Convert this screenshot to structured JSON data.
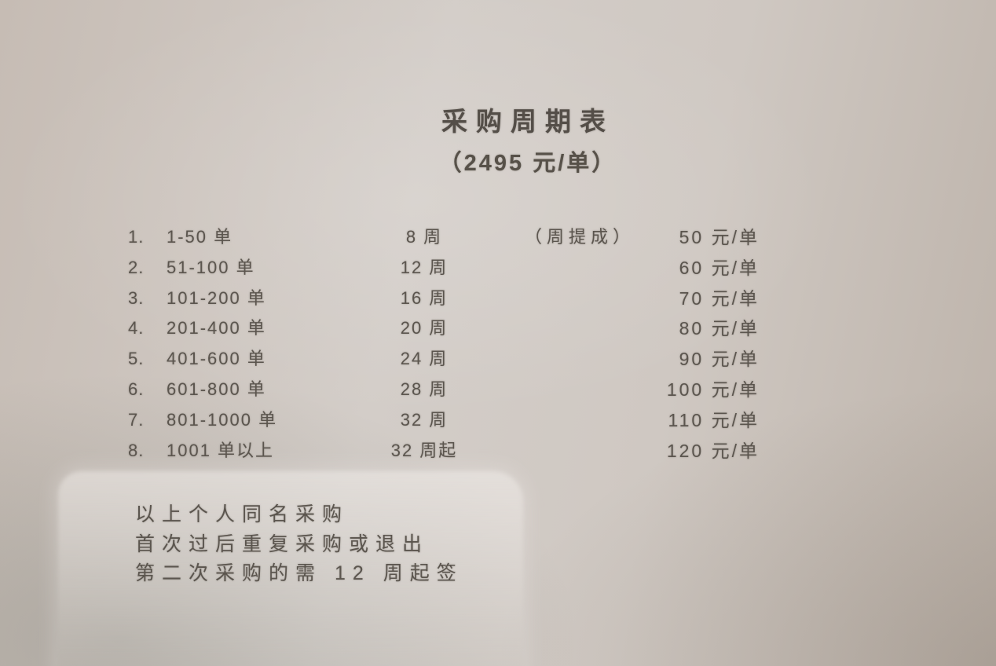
{
  "page": {
    "title": "采购周期表",
    "subtitle": "（2495 元/单）"
  },
  "table": {
    "rows": [
      {
        "num": "1.",
        "range": "1-50 单",
        "weeks": "8 周",
        "commission": "（周提成）",
        "rate": "50 元/单"
      },
      {
        "num": "2.",
        "range": "51-100 单",
        "weeks": "12 周",
        "rate": "60 元/单"
      },
      {
        "num": "3.",
        "range": "101-200 单",
        "weeks": "16 周",
        "rate": "70 元/单"
      },
      {
        "num": "4.",
        "range": "201-400 单",
        "weeks": "20 周",
        "rate": "80 元/单"
      },
      {
        "num": "5.",
        "range": "401-600 单",
        "weeks": "24 周",
        "rate": "90 元/单"
      },
      {
        "num": "6.",
        "range": "601-800 单",
        "weeks": "28 周",
        "rate": "100 元/单"
      },
      {
        "num": "7.",
        "range": "801-1000 单",
        "weeks": "32 周",
        "rate": "110 元/单"
      },
      {
        "num": "8.",
        "range": "1001 单以上",
        "weeks": "32 周起",
        "rate": "120 元/单"
      }
    ]
  },
  "notes": [
    "以上个人同名采购",
    "首次过后重复采购或退出",
    "第二次采购的需 12 周起签"
  ],
  "colors": {
    "paper": "#d2ccc7",
    "paper_edge_dark": "#b0a69d",
    "ink": "#5b554e",
    "note_patch": "#ded9d5"
  }
}
